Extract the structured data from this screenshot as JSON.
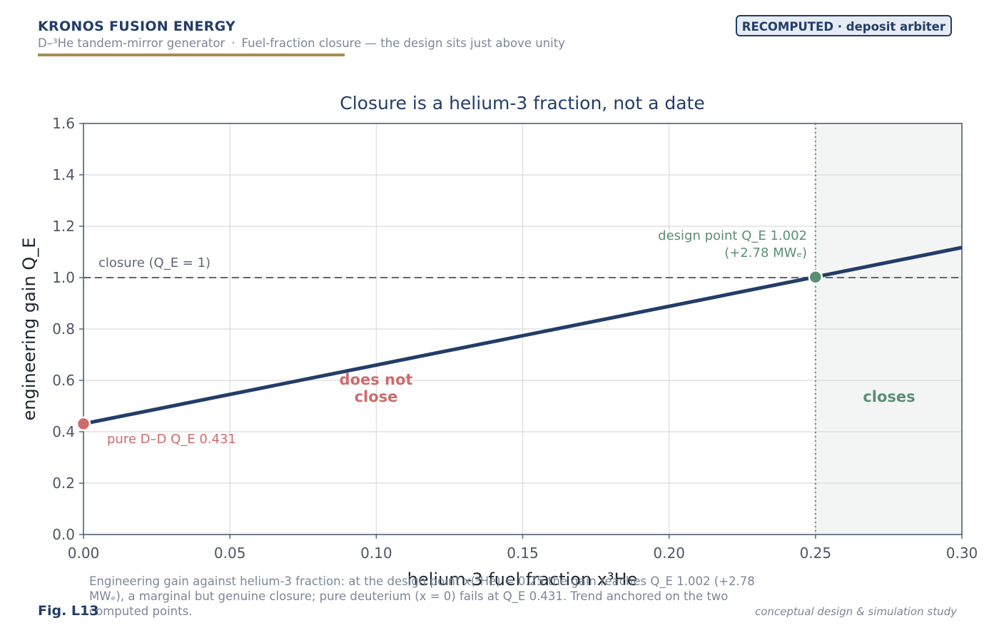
{
  "header": {
    "brand": "KRONOS FUSION ENERGY",
    "subtitle_left": "D–³He tandem-mirror generator",
    "subtitle_sep": "·",
    "subtitle_right": "Fuel-fraction closure — the design sits just above unity",
    "badge": "RECOMPUTED · deposit arbiter"
  },
  "colors": {
    "navy": "#233d68",
    "gold": "#a88c52",
    "green": "#5b8f74",
    "red": "#cd6b6b",
    "grid": "#d9dbe0",
    "axis": "#4f5d73",
    "muted": "#7d8698",
    "closes_band": "#f3f5f4"
  },
  "chart_data": {
    "type": "line",
    "title": "Closure is a helium-3 fraction, not a date",
    "xlabel": "helium-3 fuel fraction  x³He",
    "ylabel": "engineering gain  Q_E",
    "xlim": [
      0,
      0.3
    ],
    "ylim": [
      0,
      1.6
    ],
    "xticks": [
      0,
      0.05,
      0.1,
      0.15,
      0.2,
      0.25,
      0.3
    ],
    "xtick_labels": [
      "0.00",
      "0.05",
      "0.10",
      "0.15",
      "0.20",
      "0.25",
      "0.30"
    ],
    "yticks": [
      0,
      0.2,
      0.4,
      0.6,
      0.8,
      1.0,
      1.2,
      1.4,
      1.6
    ],
    "ytick_labels": [
      "0.0",
      "0.2",
      "0.4",
      "0.6",
      "0.8",
      "1.0",
      "1.2",
      "1.4",
      "1.6"
    ],
    "grid": true,
    "series": [
      {
        "x": [
          0,
          0.3
        ],
        "y": [
          0.431,
          1.117
        ]
      }
    ],
    "points": [
      {
        "x": 0,
        "y": 0.431
      },
      {
        "x": 0.25,
        "y": 1.002
      }
    ],
    "closure_line": {
      "y": 1.0,
      "label": "closure  (Q_E = 1)"
    },
    "design_marker_x": 0.25,
    "closes_region": [
      0.25,
      0.3
    ],
    "annotations": {
      "design_point_1": "design point  Q_E 1.002",
      "design_point_2": "(+2.78 MWₑ)",
      "pure_dd": "pure D–D  Q_E 0.431",
      "does_not_close_1": "does not",
      "does_not_close_2": "close",
      "closes": "closes"
    }
  },
  "caption": "Engineering gain against helium-3 fraction: at the design point x(³He) = 0.25 the gain reaches Q_E 1.002 (+2.78 MWₑ), a marginal but genuine closure; pure deuterium (x = 0) fails at Q_E 0.431. Trend anchored on the two computed points.",
  "figure_label": "Fig. L13",
  "footer_note": "conceptual design & simulation study"
}
